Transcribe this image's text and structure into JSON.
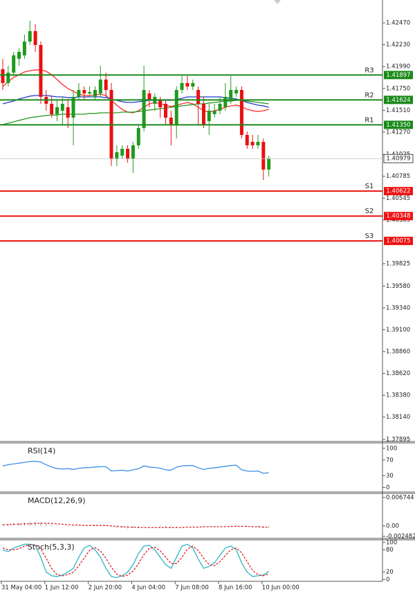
{
  "chart_data": [
    {
      "type": "candlestick",
      "categories": [
        "31 May 04:00",
        null,
        null,
        null,
        null,
        null,
        null,
        null,
        "1 Jun 12:00",
        null,
        null,
        null,
        null,
        null,
        null,
        null,
        "2 Jun 20:00",
        null,
        null,
        null,
        null,
        null,
        null,
        null,
        "4 Jun 04:00",
        null,
        null,
        null,
        null,
        null,
        null,
        null,
        "7 Jun 08:00",
        null,
        null,
        null,
        null,
        null,
        null,
        null,
        "8 Jun 16:00",
        null,
        null,
        null,
        null,
        null,
        null,
        null,
        "10 Jun 00:00",
        null
      ],
      "open": [
        1.41961,
        1.41809,
        1.41923,
        1.42075,
        1.42113,
        1.42265,
        1.42379,
        1.42227,
        1.41657,
        1.41581,
        1.41467,
        1.41505,
        1.41543,
        1.41429,
        1.41657,
        1.41733,
        1.41695,
        1.41657,
        1.41695,
        1.41847,
        1.41733,
        1.40973,
        1.41011,
        1.41087,
        1.40973,
        1.41125,
        1.41315,
        1.41695,
        1.41581,
        1.41619,
        1.41581,
        1.41429,
        1.41353,
        1.41733,
        1.41809,
        1.41771,
        1.41733,
        1.41581,
        1.41391,
        1.41467,
        1.41505,
        1.41543,
        1.41619,
        1.41695,
        1.41733,
        1.41239,
        1.41163,
        1.41125,
        1.41163,
        1.40859
      ],
      "high": [
        1.42075,
        1.41999,
        1.42151,
        1.42189,
        1.42341,
        1.42493,
        1.42455,
        1.42265,
        1.41733,
        1.41657,
        1.41619,
        1.41657,
        1.41619,
        1.41733,
        1.41809,
        1.41771,
        1.41771,
        1.41771,
        1.41999,
        1.41923,
        1.41809,
        1.41125,
        1.41125,
        1.41125,
        1.41163,
        1.41353,
        1.41999,
        1.41733,
        1.41695,
        1.41657,
        1.41619,
        1.41505,
        1.41771,
        1.41885,
        1.41885,
        1.41847,
        1.41771,
        1.41657,
        1.41581,
        1.41581,
        1.41657,
        1.41809,
        1.41885,
        1.41771,
        1.41771,
        1.41277,
        1.41239,
        1.41239,
        1.41201,
        1.41011
      ],
      "low": [
        1.41733,
        1.41771,
        1.41885,
        1.41999,
        1.42075,
        1.42227,
        1.42151,
        1.41581,
        1.41505,
        1.41429,
        1.41391,
        1.41353,
        1.41315,
        1.41125,
        1.41619,
        1.41619,
        1.41657,
        1.41619,
        1.41657,
        1.41657,
        1.40897,
        1.40897,
        1.40973,
        1.40935,
        1.40821,
        1.41087,
        1.41277,
        1.41543,
        1.41505,
        1.41429,
        1.41353,
        1.41125,
        1.41201,
        1.41695,
        1.41733,
        1.41733,
        1.41353,
        1.41315,
        1.41239,
        1.41429,
        1.41467,
        1.41505,
        1.41581,
        1.41657,
        1.41201,
        1.41087,
        1.41087,
        1.41087,
        1.40745,
        1.40783
      ],
      "close": [
        1.41809,
        1.41923,
        1.42113,
        1.42151,
        1.42265,
        1.42379,
        1.42227,
        1.41657,
        1.41581,
        1.41467,
        1.41543,
        1.41581,
        1.41429,
        1.41657,
        1.41733,
        1.41695,
        1.4171,
        1.41733,
        1.41847,
        1.41733,
        1.40973,
        1.41049,
        1.41087,
        1.40973,
        1.41125,
        1.41315,
        1.41733,
        1.41619,
        1.41657,
        1.41543,
        1.41429,
        1.41353,
        1.41733,
        1.41809,
        1.41771,
        1.41809,
        1.41581,
        1.41353,
        1.41505,
        1.41505,
        1.41581,
        1.41657,
        1.41733,
        1.41733,
        1.41239,
        1.41125,
        1.41125,
        1.41163,
        1.40859,
        1.40979
      ],
      "up_color": "#1f9a1f",
      "down_color": "#e81010",
      "series": [
        {
          "color": "#ff2a2a",
          "values": [
            1.41771,
            1.41824,
            1.4187,
            1.419,
            1.41931,
            1.41945,
            1.41953,
            1.41953,
            1.41938,
            1.419,
            1.41847,
            1.41794,
            1.41748,
            1.41718,
            1.41687,
            1.41672,
            1.41672,
            1.4168,
            1.41687,
            1.41672,
            1.41619,
            1.41566,
            1.4152,
            1.4149,
            1.41482,
            1.41505,
            1.41543,
            1.41581,
            1.41596,
            1.41581,
            1.41566,
            1.41551,
            1.41566,
            1.41581,
            1.41596,
            1.41581,
            1.41543,
            1.41505,
            1.4149,
            1.41505,
            1.4152,
            1.41543,
            1.41558,
            1.41566,
            1.41551,
            1.4152,
            1.41505,
            1.41497,
            1.41505,
            1.4152
          ]
        },
        {
          "color": "#1e3ccc",
          "values": [
            1.41581,
            1.41596,
            1.41611,
            1.41634,
            1.41649,
            1.41665,
            1.41672,
            1.41672,
            1.41672,
            1.41665,
            1.41657,
            1.41657,
            1.41649,
            1.41649,
            1.41657,
            1.41657,
            1.41657,
            1.41657,
            1.41657,
            1.41649,
            1.41634,
            1.41619,
            1.41604,
            1.41596,
            1.41596,
            1.41604,
            1.41611,
            1.41619,
            1.41619,
            1.41619,
            1.41619,
            1.41619,
            1.41627,
            1.41642,
            1.41657,
            1.41657,
            1.41657,
            1.41657,
            1.41657,
            1.41657,
            1.41657,
            1.41649,
            1.41642,
            1.41634,
            1.41619,
            1.41596,
            1.41581,
            1.41566,
            1.41558,
            1.41543
          ]
        },
        {
          "color": "#229922",
          "values": [
            1.41353,
            1.41368,
            1.41383,
            1.41399,
            1.41414,
            1.41429,
            1.41437,
            1.41444,
            1.41452,
            1.41459,
            1.41459,
            1.41467,
            1.41467,
            1.41467,
            1.41467,
            1.41467,
            1.41475,
            1.41475,
            1.41482,
            1.41482,
            1.41482,
            1.41482,
            1.4149,
            1.4149,
            1.4149,
            1.41497,
            1.41505,
            1.41513,
            1.4152,
            1.41528,
            1.41535,
            1.41543,
            1.41551,
            1.41558,
            1.41566,
            1.41573,
            1.41581,
            1.41581,
            1.41589,
            1.41596,
            1.41604,
            1.41611,
            1.41611,
            1.41619,
            1.41619,
            1.41611,
            1.41604,
            1.41596,
            1.41589,
            1.41581
          ]
        }
      ],
      "levels": {
        "names": [
          "R3",
          "R2",
          "R1",
          "S1",
          "S2",
          "S3"
        ],
        "values": [
          1.41897,
          1.41624,
          1.4135,
          1.40622,
          1.40348,
          1.40075
        ],
        "value_labels": [
          "1.41897",
          "1.41624",
          "1.41350",
          "1.40622",
          "1.40348",
          "1.40075"
        ],
        "colors": [
          "#1a8a1a",
          "#1a8a1a",
          "#1a8a1a",
          "#ee1111",
          "#ee1111",
          "#ee1111"
        ]
      },
      "last_price": 1.40979,
      "ylim": [
        1.37872,
        1.42721
      ],
      "yticks": [
        {
          "value": 1.4247,
          "label": "1.42470"
        },
        {
          "value": 1.4223,
          "label": "1.42230"
        },
        {
          "value": 1.4199,
          "label": "1.41990"
        },
        {
          "value": 1.4175,
          "label": "1.41750"
        },
        {
          "value": 1.4151,
          "label": "1.41510"
        },
        {
          "value": 1.4127,
          "label": "1.41270"
        },
        1.41025,
        1.40785,
        1.40545,
        1.40305,
        1.39825,
        {
          "value": 1.3958,
          "label": "1.39580"
        },
        {
          "value": 1.3934,
          "label": "1.39340"
        },
        {
          "value": 1.391,
          "label": "1.39100"
        },
        {
          "value": 1.3886,
          "label": "1.38860"
        },
        {
          "value": 1.3862,
          "label": "1.38620"
        },
        {
          "value": 1.3838,
          "label": "1.38380"
        },
        {
          "value": 1.3814,
          "label": "1.38140"
        },
        1.37895
      ]
    },
    {
      "type": "line",
      "title": "RSI(14)",
      "series": [
        {
          "color": "#3a8ee6",
          "values": [
            55,
            58,
            60,
            62,
            64,
            66,
            67,
            65,
            58,
            52,
            48,
            47,
            48,
            46,
            49,
            50,
            51,
            52,
            53,
            53,
            42,
            43,
            44,
            42,
            45,
            48,
            55,
            52,
            51,
            49,
            45,
            44,
            52,
            55,
            56,
            56,
            50,
            46,
            49,
            50,
            52,
            54,
            56,
            57,
            45,
            42,
            41,
            42,
            36,
            38
          ]
        }
      ],
      "ylim": [
        -10,
        112
      ],
      "yticks": [
        100,
        70,
        30,
        0
      ]
    },
    {
      "type": "bar",
      "title": "MACD(12,26,9)",
      "color": "#9a9a9a",
      "values": [
        0.0004,
        0.0005,
        0.0006,
        0.0007,
        0.0008,
        0.0009,
        0.001,
        0.0009,
        0.0006,
        0.0003,
        0.0001,
        0,
        -0.0001,
        -0.0001,
        0,
        0.0001,
        0.0001,
        0.0002,
        0.0002,
        0.0002,
        -0.0002,
        -0.0004,
        -0.0005,
        -0.0006,
        -0.0005,
        -0.0004,
        -0.0001,
        -0.0001,
        -0.0001,
        -0.0002,
        -0.0003,
        -0.0003,
        -0.0002,
        0,
        0.0001,
        0.0001,
        0,
        -0.0001,
        -0.0001,
        -0.0001,
        0,
        0.0001,
        0.0001,
        0.0002,
        -0.0001,
        -0.0002,
        -0.0003,
        -0.0003,
        -0.0005,
        -0.0005
      ],
      "series": [
        {
          "color": "#dd2222",
          "dashed": true,
          "values": [
            0.0003,
            0.0003,
            0.0004,
            0.0004,
            0.0005,
            0.0005,
            0.0006,
            0.0006,
            0.0006,
            0.0006,
            0.0005,
            0.0004,
            0.0003,
            0.0002,
            0.0002,
            0.0001,
            0.0001,
            0.0001,
            0.0001,
            0.0001,
            0,
            -0.0001,
            -0.0002,
            -0.0003,
            -0.0003,
            -0.0004,
            -0.0004,
            -0.0004,
            -0.0004,
            -0.0004,
            -0.0004,
            -0.0004,
            -0.0004,
            -0.0004,
            -0.0003,
            -0.0003,
            -0.0003,
            -0.0002,
            -0.0002,
            -0.0002,
            -0.0002,
            -0.0002,
            -0.0001,
            -0.0001,
            -0.0001,
            -0.0001,
            -0.0002,
            -0.0002,
            -0.0003,
            -0.0003
          ]
        }
      ],
      "ylim": [
        -0.0028,
        0.0077
      ],
      "yticks": [
        0.006744,
        {
          "value": 0,
          "label": "0.00"
        },
        -0.002482
      ]
    },
    {
      "type": "line",
      "title": "Stoch(5,3,3)",
      "series": [
        {
          "color": "#2bb5c8",
          "values": [
            80,
            75,
            85,
            90,
            95,
            95,
            92,
            60,
            20,
            10,
            8,
            12,
            20,
            30,
            60,
            85,
            92,
            80,
            60,
            30,
            8,
            5,
            10,
            20,
            40,
            70,
            90,
            92,
            80,
            60,
            40,
            30,
            60,
            90,
            95,
            85,
            55,
            30,
            35,
            45,
            65,
            85,
            90,
            80,
            45,
            20,
            8,
            10,
            12,
            22
          ]
        },
        {
          "color": "#dd2222",
          "dashed": true,
          "values": [
            85,
            80,
            80,
            83,
            90,
            93,
            94,
            82,
            57,
            30,
            13,
            10,
            13,
            20,
            37,
            58,
            79,
            86,
            77,
            57,
            33,
            14,
            8,
            12,
            23,
            43,
            67,
            84,
            87,
            77,
            60,
            43,
            43,
            60,
            82,
            90,
            78,
            57,
            40,
            37,
            48,
            65,
            80,
            85,
            72,
            48,
            24,
            13,
            10,
            15
          ]
        }
      ],
      "ylim": [
        -5,
        107
      ],
      "yticks": [
        100,
        80,
        20,
        0
      ]
    }
  ]
}
